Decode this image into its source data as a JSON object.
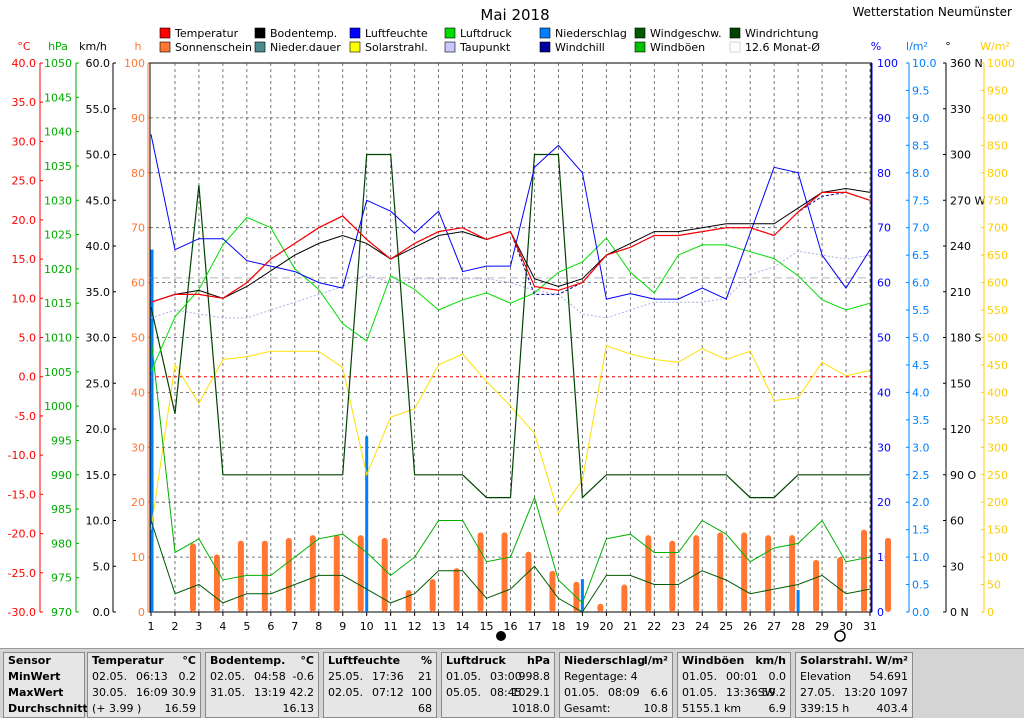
{
  "header": {
    "title": "Mai 2018",
    "station": "Wetterstation Neumünster"
  },
  "legend": [
    {
      "label": "Temperatur",
      "color": "#ff0000"
    },
    {
      "label": "Bodentemp.",
      "color": "#000000"
    },
    {
      "label": "Luftfeuchte",
      "color": "#0000ff"
    },
    {
      "label": "Luftdruck",
      "color": "#00dd00"
    },
    {
      "label": "Niederschlag",
      "color": "#0080ff"
    },
    {
      "label": "Windgeschw.",
      "color": "#005a00"
    },
    {
      "label": "Windrichtung",
      "color": "#004400"
    },
    {
      "label": "Sonnenschein",
      "color": "#ff7733"
    },
    {
      "label": "Nieder.dauer",
      "color": "#4a8a8a"
    },
    {
      "label": "Solarstrahl.",
      "color": "#ffff00"
    },
    {
      "label": "Taupunkt",
      "color": "#c8c8ff"
    },
    {
      "label": "Windchill",
      "color": "#0000a0"
    },
    {
      "label": "Windböen",
      "color": "#00c000"
    },
    {
      "label": "12.6 Monat-Ø",
      "color": "#c0c0c0"
    }
  ],
  "axes": {
    "temp": {
      "unit": "°C",
      "color": "#ff0000",
      "ticks": [
        "40.0",
        "35.0",
        "30.0",
        "25.0",
        "20.0",
        "15.0",
        "10.0",
        "5.0",
        "0.0",
        "-5.0",
        "-10.0",
        "-15.0",
        "-20.0",
        "-25.0",
        "-30.0"
      ]
    },
    "pressure": {
      "unit": "hPa",
      "color": "#00aa00",
      "ticks": [
        "1050",
        "1045",
        "1040",
        "1035",
        "1030",
        "1025",
        "1020",
        "1015",
        "1010",
        "1005",
        "1000",
        "995",
        "990",
        "985",
        "980",
        "975",
        "970"
      ]
    },
    "wind": {
      "unit": "km/h",
      "color": "#000000",
      "ticks": [
        "60.0",
        "55.0",
        "50.0",
        "45.0",
        "40.0",
        "35.0",
        "30.0",
        "25.0",
        "20.0",
        "15.0",
        "10.0",
        "5.0",
        "0.0"
      ]
    },
    "hours": {
      "unit": "h",
      "color": "#ff7733",
      "ticks": [
        "100",
        "90",
        "80",
        "70",
        "60",
        "50",
        "40",
        "30",
        "20",
        "10",
        "0"
      ]
    },
    "humidity": {
      "unit": "%",
      "color": "#0000ff",
      "ticks": [
        "100",
        "90",
        "80",
        "70",
        "60",
        "50",
        "40",
        "30",
        "20",
        "10",
        "0"
      ]
    },
    "rain": {
      "unit": "l/m²",
      "color": "#0080ff",
      "ticks": [
        "10.0",
        "9.5",
        "9.0",
        "8.5",
        "8.0",
        "7.5",
        "7.0",
        "6.5",
        "6.0",
        "5.5",
        "5.0",
        "4.5",
        "4.0",
        "3.5",
        "3.0",
        "2.5",
        "2.0",
        "1.5",
        "1.0",
        "0.5",
        "0.0"
      ]
    },
    "direction": {
      "unit": "°",
      "color": "#000000",
      "ticks": [
        "360 N",
        "330",
        "300",
        "270 W",
        "240",
        "210",
        "180 S",
        "150",
        "120",
        "90 O",
        "60",
        "30",
        "0 N"
      ]
    },
    "solar": {
      "unit": "W/m²",
      "color": "#ffcc00",
      "ticks": [
        "1000",
        "950",
        "900",
        "850",
        "800",
        "750",
        "700",
        "650",
        "600",
        "550",
        "500",
        "450",
        "400",
        "350",
        "300",
        "250",
        "200",
        "150",
        "100",
        "50",
        "0"
      ]
    }
  },
  "chart_data": {
    "type": "line",
    "x": [
      1,
      2,
      3,
      4,
      5,
      6,
      7,
      8,
      9,
      10,
      11,
      12,
      13,
      14,
      15,
      16,
      17,
      18,
      19,
      20,
      21,
      22,
      23,
      24,
      25,
      26,
      27,
      28,
      29,
      30,
      31
    ],
    "x_tick_labels": [
      "1",
      "2",
      "3",
      "4",
      "5",
      "6",
      "7",
      "8",
      "9",
      "10",
      "11",
      "12",
      "13",
      "14",
      "15",
      "16",
      "17",
      "18",
      "19",
      "20",
      "21",
      "22",
      "23",
      "24",
      "25",
      "26",
      "27",
      "28",
      "29",
      "30",
      "31"
    ],
    "series": [
      {
        "name": "Temperatur",
        "axis": "temp",
        "values": [
          9.5,
          10.5,
          10.5,
          10.0,
          12.0,
          15.0,
          17.0,
          19.0,
          20.5,
          17.5,
          15.0,
          17.0,
          18.5,
          19.0,
          17.5,
          18.5,
          11.5,
          11.0,
          12.0,
          15.5,
          16.5,
          18.0,
          18.0,
          18.5,
          19.0,
          19.0,
          18.0,
          21.0,
          23.5,
          23.5,
          22.5
        ]
      },
      {
        "name": "Bodentemp.",
        "axis": "temp",
        "values": [
          9.5,
          10.5,
          11.0,
          10.0,
          11.5,
          13.5,
          15.5,
          17.0,
          18.0,
          17.0,
          15.0,
          16.5,
          18.0,
          18.5,
          17.5,
          18.5,
          12.5,
          11.5,
          12.5,
          15.5,
          17.0,
          18.5,
          18.5,
          19.0,
          19.5,
          19.5,
          19.5,
          21.5,
          23.5,
          24.0,
          23.5
        ]
      },
      {
        "name": "Luftfeuchte",
        "axis": "humidity",
        "values": [
          87,
          66,
          68,
          68,
          64,
          63,
          62,
          60,
          59,
          75,
          73,
          69,
          73,
          62,
          63,
          63,
          81,
          85,
          80,
          57,
          58,
          57,
          57,
          59,
          57,
          69,
          81,
          80,
          65,
          59,
          66
        ]
      },
      {
        "name": "Luftdruck",
        "axis": "pressure",
        "values": [
          1005,
          1013,
          1017,
          1023.5,
          1027.5,
          1026,
          1020,
          1017,
          1012,
          1009.5,
          1019,
          1017,
          1014,
          1015.5,
          1016.5,
          1015,
          1016.5,
          1019.5,
          1021,
          1024.5,
          1019.5,
          1016.5,
          1022,
          1023.5,
          1023.5,
          1022.5,
          1021.5,
          1019,
          1015.5,
          1014,
          1015
        ]
      },
      {
        "name": "Windböen",
        "axis": "wind",
        "values": [
          30.0,
          6.5,
          8.0,
          3.5,
          4.0,
          4.0,
          6.0,
          8.0,
          8.5,
          6.5,
          4.0,
          6.0,
          10.0,
          10.0,
          5.5,
          6.0,
          12.5,
          3.5,
          1.0,
          8.0,
          8.5,
          6.5,
          6.5,
          10.0,
          8.5,
          5.5,
          7.0,
          7.5,
          10.0,
          5.5,
          6.0
        ]
      },
      {
        "name": "Windgeschw.",
        "axis": "wind",
        "values": [
          10.0,
          2.0,
          3.0,
          1.0,
          2.0,
          2.0,
          3.0,
          4.0,
          4.0,
          2.5,
          1.0,
          2.0,
          4.5,
          4.5,
          1.5,
          2.5,
          5.0,
          1.5,
          0.0,
          4.0,
          4.0,
          3.0,
          3.0,
          4.5,
          3.5,
          2.0,
          2.5,
          3.0,
          4.0,
          2.0,
          2.5
        ]
      },
      {
        "name": "Windrichtung",
        "axis": "direction",
        "values": [
          200,
          130,
          280,
          90,
          90,
          90,
          90,
          90,
          90,
          300,
          300,
          90,
          90,
          90,
          75,
          75,
          300,
          300,
          75,
          90,
          90,
          90,
          90,
          90,
          90,
          75,
          75,
          90,
          90,
          90,
          90
        ]
      },
      {
        "name": "Solarstrahl.",
        "axis": "solar",
        "values": [
          150,
          450,
          380,
          460,
          465,
          475,
          475,
          475,
          445,
          250,
          355,
          370,
          450,
          470,
          420,
          375,
          325,
          180,
          240,
          485,
          470,
          460,
          455,
          480,
          460,
          475,
          385,
          390,
          455,
          430,
          440
        ]
      },
      {
        "name": "Taupunkt",
        "axis": "temp",
        "values": [
          7.5,
          8.5,
          8.0,
          7.5,
          7.5,
          8.5,
          9.5,
          10.5,
          11.5,
          13.0,
          12.0,
          12.5,
          12.5,
          12.5,
          12.5,
          12.0,
          11.0,
          10.5,
          8.0,
          7.5,
          8.5,
          9.5,
          9.5,
          9.5,
          10.0,
          13.0,
          14.0,
          16.0,
          15.5,
          15.0,
          15.5
        ]
      },
      {
        "name": "Windchill",
        "axis": "temp",
        "values": [
          9.5,
          10.5,
          10.5,
          10.0,
          12.0,
          15.0,
          17.0,
          19.0,
          20.5,
          17.5,
          15.0,
          17.0,
          18.5,
          19.0,
          17.5,
          18.5,
          10.5,
          10.5,
          12.0,
          15.5,
          16.5,
          18.0,
          18.0,
          18.5,
          19.0,
          19.0,
          18.0,
          21.0,
          23.0,
          23.5,
          22.5
        ]
      }
    ],
    "bars": [
      {
        "name": "Sonnenschein",
        "axis": "hours",
        "values": [
          0,
          12.5,
          10.5,
          13.0,
          13.0,
          13.5,
          14.0,
          14.0,
          14.0,
          13.5,
          4.0,
          6.0,
          8.0,
          14.5,
          14.5,
          11.0,
          7.5,
          5.5,
          1.5,
          5.0,
          14.0,
          13.0,
          14.0,
          14.5,
          14.5,
          14.0,
          14.0,
          9.5,
          10.0,
          15.0,
          13.5
        ]
      },
      {
        "name": "Niederschlag",
        "axis": "rain",
        "values": [
          6.6,
          0,
          0,
          0,
          0,
          0,
          0,
          0,
          0,
          3.2,
          0,
          0,
          0,
          0,
          0,
          0,
          0,
          0,
          0.6,
          0,
          0,
          0,
          0,
          0,
          0,
          0,
          0,
          0.4,
          0,
          0,
          0
        ]
      }
    ],
    "reference_lines": [
      {
        "name": "12.6 Monat-Ø",
        "axis": "temp",
        "value": 12.6
      }
    ],
    "grid": true
  },
  "stats": {
    "row_labels": [
      "Sensor",
      "MinWert",
      "MaxWert",
      "Durchschnitt"
    ],
    "sections": [
      {
        "name": "Temperatur",
        "unit": "°C",
        "rows": [
          [
            "02.05.",
            "06:13",
            "0.2"
          ],
          [
            "30.05.",
            "16:09",
            "30.9"
          ],
          [
            "(+ 3.99 )",
            "",
            "16.59"
          ]
        ]
      },
      {
        "name": "Bodentemp.",
        "unit": "°C",
        "rows": [
          [
            "02.05.",
            "04:58",
            "-0.6"
          ],
          [
            "31.05.",
            "13:19",
            "42.2"
          ],
          [
            "",
            "",
            "16.13"
          ]
        ]
      },
      {
        "name": "Luftfeuchte",
        "unit": "%",
        "rows": [
          [
            "25.05.",
            "17:36",
            "21"
          ],
          [
            "02.05.",
            "07:12",
            "100"
          ],
          [
            "",
            "",
            "68"
          ]
        ]
      },
      {
        "name": "Luftdruck",
        "unit": "hPa",
        "rows": [
          [
            "01.05.",
            "03:00",
            "998.8"
          ],
          [
            "05.05.",
            "08:45",
            "1029.1"
          ],
          [
            "",
            "",
            "1018.0"
          ]
        ]
      },
      {
        "name": "Niederschlag",
        "unit": "l/m²",
        "rows": [
          [
            "Regentage: 4",
            "",
            ""
          ],
          [
            "01.05.",
            "08:09",
            "6.6"
          ],
          [
            "Gesamt:",
            "",
            "10.8"
          ]
        ]
      },
      {
        "name": "Windböen",
        "unit": "km/h",
        "rows": [
          [
            "01.05.",
            "00:01",
            "0.0"
          ],
          [
            "01.05.",
            "13:36SW",
            "59.2"
          ],
          [
            "5155.1 km",
            "",
            "6.9"
          ]
        ]
      },
      {
        "name": "Solarstrahl.",
        "unit": "W/m²",
        "rows": [
          [
            "Elevation",
            "",
            "54.691"
          ],
          [
            "27.05.",
            "13:20",
            "1097"
          ],
          [
            "339:15 h",
            "",
            "403.4"
          ]
        ]
      }
    ]
  }
}
